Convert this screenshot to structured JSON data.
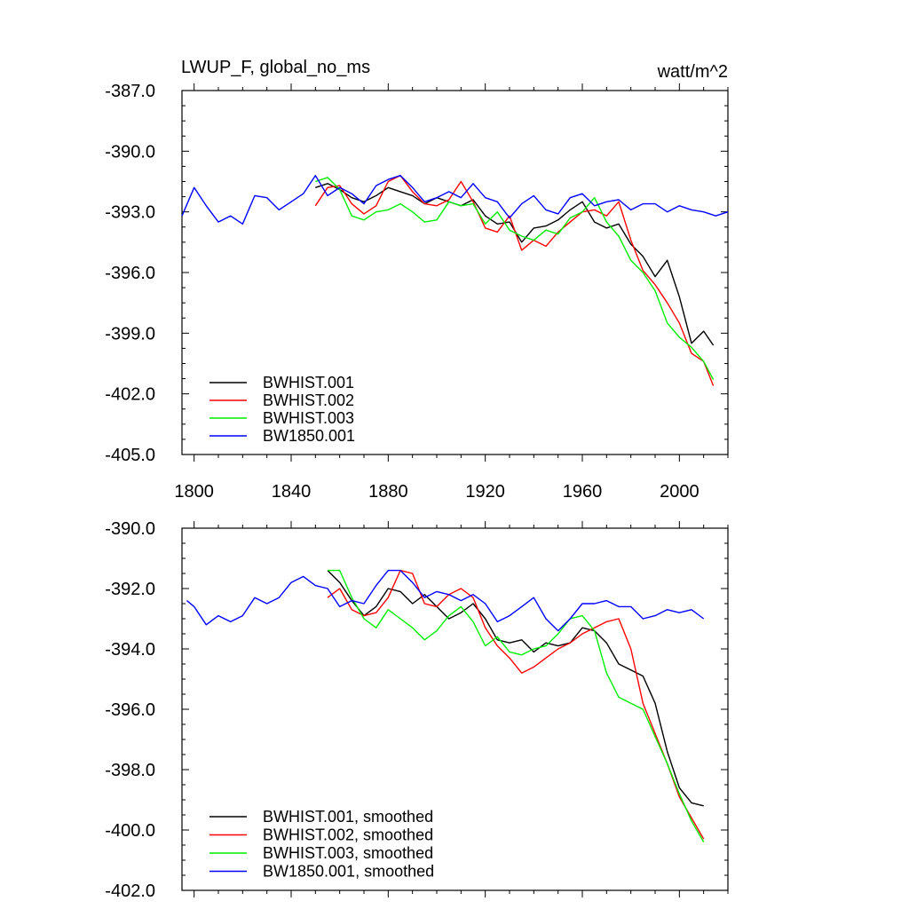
{
  "chart_data": [
    {
      "type": "line",
      "title": "LWUP_F, global_no_ms",
      "units": "watt/m^2",
      "xlabel": "",
      "ylabel": "",
      "xlim": [
        1795,
        2020
      ],
      "ylim": [
        -405.0,
        -387.0
      ],
      "xticks": [
        1800,
        1840,
        1880,
        1920,
        1960,
        2000
      ],
      "xtick_labels": [
        "1800",
        "1840",
        "1880",
        "1920",
        "1960",
        "2000"
      ],
      "yticks": [
        -387.0,
        -390.0,
        -393.0,
        -396.0,
        -399.0,
        -402.0,
        -405.0
      ],
      "ytick_labels": [
        "-387.0",
        "-390.0",
        "-393.0",
        "-396.0",
        "-399.0",
        "-402.0",
        "-405.0"
      ],
      "legend_position": "bottom-left",
      "grid": false,
      "series": [
        {
          "name": "BWHIST.001",
          "color": "#000000",
          "x": [
            1850,
            1855,
            1860,
            1865,
            1870,
            1875,
            1880,
            1885,
            1890,
            1895,
            1900,
            1905,
            1910,
            1915,
            1920,
            1925,
            1930,
            1935,
            1940,
            1945,
            1950,
            1955,
            1960,
            1965,
            1970,
            1975,
            1980,
            1985,
            1990,
            1995,
            2000,
            2005,
            2010,
            2014
          ],
          "y": [
            -391.8,
            -391.6,
            -391.9,
            -392.3,
            -392.5,
            -392.2,
            -391.8,
            -392.0,
            -392.2,
            -392.6,
            -392.3,
            -392.5,
            -392.7,
            -392.4,
            -393.2,
            -393.6,
            -393.5,
            -394.5,
            -393.8,
            -393.7,
            -393.4,
            -392.9,
            -392.5,
            -393.5,
            -393.8,
            -393.6,
            -394.6,
            -395.2,
            -396.2,
            -395.4,
            -397.2,
            -399.5,
            -398.9,
            -399.6
          ]
        },
        {
          "name": "BWHIST.002",
          "color": "#ff0000",
          "x": [
            1850,
            1855,
            1860,
            1865,
            1870,
            1875,
            1880,
            1885,
            1890,
            1895,
            1900,
            1905,
            1910,
            1915,
            1920,
            1925,
            1930,
            1935,
            1940,
            1945,
            1950,
            1955,
            1960,
            1965,
            1970,
            1975,
            1980,
            1985,
            1990,
            1995,
            2000,
            2005,
            2010,
            2014
          ],
          "y": [
            -392.7,
            -391.8,
            -391.7,
            -392.6,
            -393.1,
            -392.7,
            -391.5,
            -391.2,
            -392.0,
            -392.6,
            -392.7,
            -392.4,
            -391.5,
            -392.5,
            -393.8,
            -394.0,
            -393.2,
            -394.9,
            -394.4,
            -394.7,
            -394.0,
            -393.5,
            -393.0,
            -392.9,
            -393.2,
            -392.5,
            -394.4,
            -395.9,
            -396.6,
            -397.5,
            -398.5,
            -400.0,
            -400.4,
            -401.6
          ]
        },
        {
          "name": "BWHIST.003",
          "color": "#00ee00",
          "x": [
            1850,
            1855,
            1860,
            1865,
            1870,
            1875,
            1880,
            1885,
            1890,
            1895,
            1900,
            1905,
            1910,
            1915,
            1920,
            1925,
            1930,
            1935,
            1940,
            1945,
            1950,
            1955,
            1960,
            1965,
            1970,
            1975,
            1980,
            1985,
            1990,
            1995,
            2000,
            2005,
            2010,
            2014
          ],
          "y": [
            -391.5,
            -391.3,
            -391.9,
            -393.2,
            -393.4,
            -393.0,
            -392.9,
            -392.6,
            -393.0,
            -393.5,
            -393.4,
            -392.5,
            -392.7,
            -392.6,
            -393.6,
            -393.0,
            -393.9,
            -394.2,
            -394.4,
            -393.9,
            -394.1,
            -393.3,
            -393.0,
            -392.3,
            -393.5,
            -394.2,
            -395.4,
            -396.0,
            -396.9,
            -398.5,
            -399.2,
            -399.7,
            -400.4,
            -401.3
          ]
        },
        {
          "name": "BW1850.001",
          "color": "#0000ff",
          "x": [
            1795,
            1800,
            1805,
            1810,
            1815,
            1820,
            1825,
            1830,
            1835,
            1840,
            1845,
            1850,
            1855,
            1860,
            1865,
            1870,
            1875,
            1880,
            1885,
            1890,
            1895,
            1900,
            1905,
            1910,
            1915,
            1920,
            1925,
            1930,
            1935,
            1940,
            1945,
            1950,
            1955,
            1960,
            1965,
            1970,
            1975,
            1980,
            1985,
            1990,
            1995,
            2000,
            2005,
            2010,
            2015,
            2020
          ],
          "y": [
            -393.2,
            -391.8,
            -392.7,
            -393.5,
            -393.2,
            -393.6,
            -392.2,
            -392.3,
            -392.9,
            -392.5,
            -392.1,
            -391.2,
            -392.2,
            -391.8,
            -392.1,
            -392.6,
            -391.7,
            -391.4,
            -391.2,
            -391.8,
            -392.5,
            -392.3,
            -392.0,
            -392.3,
            -391.6,
            -392.3,
            -392.5,
            -393.3,
            -392.6,
            -392.2,
            -392.9,
            -393.1,
            -392.3,
            -392.1,
            -392.7,
            -392.5,
            -392.4,
            -392.9,
            -392.6,
            -392.6,
            -393.0,
            -392.7,
            -392.9,
            -393.0,
            -393.2,
            -393.0
          ]
        }
      ]
    },
    {
      "type": "line",
      "title": "",
      "xlabel": "",
      "ylabel": "",
      "xlim": [
        1795,
        2020
      ],
      "ylim": [
        -402.0,
        -390.0
      ],
      "xticks": [
        1800,
        1840,
        1880,
        1920,
        1960,
        2000
      ],
      "xtick_labels": [],
      "yticks": [
        -390.0,
        -392.0,
        -394.0,
        -396.0,
        -398.0,
        -400.0,
        -402.0
      ],
      "ytick_labels": [
        "-390.0",
        "-392.0",
        "-394.0",
        "-396.0",
        "-398.0",
        "-400.0",
        "-402.0"
      ],
      "legend_position": "bottom-left",
      "grid": false,
      "series": [
        {
          "name": "BWHIST.001, smoothed",
          "color": "#000000",
          "x": [
            1855,
            1860,
            1865,
            1870,
            1875,
            1880,
            1885,
            1890,
            1895,
            1900,
            1905,
            1910,
            1915,
            1920,
            1925,
            1930,
            1935,
            1940,
            1945,
            1950,
            1955,
            1960,
            1965,
            1970,
            1975,
            1980,
            1985,
            1990,
            1995,
            2000,
            2005,
            2010
          ],
          "y": [
            -391.4,
            -391.8,
            -392.4,
            -392.9,
            -392.6,
            -392.0,
            -392.1,
            -392.5,
            -392.2,
            -392.6,
            -393.0,
            -392.8,
            -392.5,
            -393.0,
            -393.7,
            -393.8,
            -393.7,
            -394.1,
            -393.8,
            -393.9,
            -393.8,
            -393.3,
            -393.4,
            -393.8,
            -394.5,
            -394.7,
            -394.9,
            -395.8,
            -397.4,
            -398.6,
            -399.1,
            -399.2
          ]
        },
        {
          "name": "BWHIST.002, smoothed",
          "color": "#ff0000",
          "x": [
            1855,
            1860,
            1865,
            1870,
            1875,
            1880,
            1885,
            1890,
            1895,
            1900,
            1905,
            1910,
            1915,
            1920,
            1925,
            1930,
            1935,
            1940,
            1945,
            1950,
            1955,
            1960,
            1965,
            1970,
            1975,
            1980,
            1985,
            1990,
            1995,
            2000,
            2005,
            2010
          ],
          "y": [
            -392.3,
            -392.0,
            -392.7,
            -392.9,
            -392.8,
            -392.3,
            -391.4,
            -391.5,
            -392.5,
            -392.6,
            -392.2,
            -392.0,
            -392.3,
            -393.3,
            -393.9,
            -394.3,
            -394.8,
            -394.6,
            -394.3,
            -394.0,
            -393.8,
            -393.5,
            -393.3,
            -393.1,
            -393.0,
            -394.0,
            -395.8,
            -396.8,
            -397.8,
            -398.9,
            -399.6,
            -400.3
          ]
        },
        {
          "name": "BWHIST.003, smoothed",
          "color": "#00ee00",
          "x": [
            1855,
            1860,
            1865,
            1870,
            1875,
            1880,
            1885,
            1890,
            1895,
            1900,
            1905,
            1910,
            1915,
            1920,
            1925,
            1930,
            1935,
            1940,
            1945,
            1950,
            1955,
            1960,
            1965,
            1970,
            1975,
            1980,
            1985,
            1990,
            1995,
            2000,
            2005,
            2010
          ],
          "y": [
            -391.4,
            -391.4,
            -392.3,
            -393.0,
            -393.3,
            -392.7,
            -393.0,
            -393.3,
            -393.7,
            -393.4,
            -392.9,
            -392.6,
            -393.1,
            -393.9,
            -393.6,
            -394.1,
            -394.2,
            -394.0,
            -393.9,
            -393.5,
            -393.0,
            -392.9,
            -393.4,
            -394.8,
            -395.6,
            -395.8,
            -396.0,
            -396.9,
            -397.8,
            -398.8,
            -399.7,
            -400.4
          ]
        },
        {
          "name": "BW1850.001, smoothed",
          "color": "#0000ff",
          "x": [
            1797,
            1800,
            1805,
            1810,
            1815,
            1820,
            1825,
            1830,
            1835,
            1840,
            1845,
            1850,
            1855,
            1860,
            1865,
            1870,
            1875,
            1880,
            1885,
            1890,
            1895,
            1900,
            1905,
            1910,
            1915,
            1920,
            1925,
            1930,
            1935,
            1940,
            1945,
            1950,
            1955,
            1960,
            1965,
            1970,
            1975,
            1980,
            1985,
            1990,
            1995,
            2000,
            2005,
            2010
          ],
          "y": [
            -392.4,
            -392.6,
            -393.2,
            -392.9,
            -393.1,
            -392.9,
            -392.3,
            -392.5,
            -392.3,
            -391.8,
            -391.6,
            -391.9,
            -392.0,
            -392.6,
            -392.4,
            -392.5,
            -391.9,
            -391.4,
            -391.4,
            -391.8,
            -392.3,
            -392.1,
            -392.2,
            -392.4,
            -392.2,
            -392.5,
            -393.1,
            -392.9,
            -392.6,
            -392.3,
            -393.0,
            -393.4,
            -393.0,
            -392.5,
            -392.5,
            -392.4,
            -392.6,
            -392.6,
            -393.0,
            -392.9,
            -392.7,
            -392.8,
            -392.7,
            -393.0
          ]
        }
      ]
    }
  ]
}
